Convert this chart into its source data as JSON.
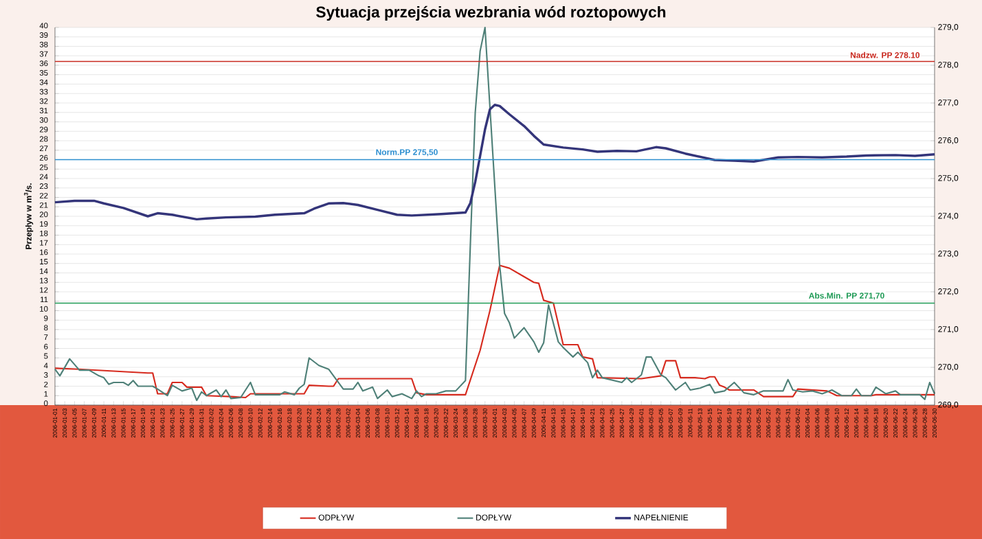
{
  "chart_data": {
    "type": "line",
    "title": "Sytuacja przejścia wezbrania wód roztopowych",
    "ylabel": "Przepływ w m$^{3}$/s.",
    "xlim": [
      "2006-01-01",
      "2006-06-30"
    ],
    "xticks": [
      "2006-01-01",
      "2006-01-03",
      "2006-01-05",
      "2006-01-07",
      "2006-01-09",
      "2006-01-11",
      "2006-01-13",
      "2006-01-15",
      "2006-01-17",
      "2006-01-19",
      "2006-01-21",
      "2006-01-23",
      "2006-01-25",
      "2006-01-27",
      "2006-01-29",
      "2006-01-31",
      "2006-02-02",
      "2006-02-04",
      "2006-02-06",
      "2006-02-08",
      "2006-02-10",
      "2006-02-12",
      "2006-02-14",
      "2006-02-16",
      "2006-02-18",
      "2006-02-20",
      "2006-02-22",
      "2006-02-24",
      "2006-02-26",
      "2006-02-28",
      "2006-03-02",
      "2006-03-04",
      "2006-03-06",
      "2006-03-08",
      "2006-03-10",
      "2006-03-12",
      "2006-03-14",
      "2006-03-16",
      "2006-03-18",
      "2006-03-20",
      "2006-03-22",
      "2006-03-24",
      "2006-03-26",
      "2006-03-28",
      "2006-03-30",
      "2006-04-01",
      "2006-04-03",
      "2006-04-05",
      "2006-04-07",
      "2006-04-09",
      "2006-04-11",
      "2006-04-13",
      "2006-04-15",
      "2006-04-17",
      "2006-04-19",
      "2006-04-21",
      "2006-04-23",
      "2006-04-25",
      "2006-04-27",
      "2006-04-29",
      "2006-05-01",
      "2006-05-03",
      "2006-05-05",
      "2006-05-07",
      "2006-05-09",
      "2006-05-11",
      "2006-05-13",
      "2006-05-15",
      "2006-05-17",
      "2006-05-19",
      "2006-05-21",
      "2006-05-23",
      "2006-05-25",
      "2006-05-27",
      "2006-05-29",
      "2006-05-31",
      "2006-06-02",
      "2006-06-04",
      "2006-06-06",
      "2006-06-08",
      "2006-06-10",
      "2006-06-12",
      "2006-06-14",
      "2006-06-16",
      "2006-06-18",
      "2006-06-20",
      "2006-06-22",
      "2006-06-24",
      "2006-06-26",
      "2006-06-28",
      "2006-06-30"
    ],
    "ylim": [
      0,
      40
    ],
    "yticks": [
      0,
      1,
      2,
      3,
      4,
      5,
      6,
      7,
      8,
      9,
      10,
      11,
      12,
      13,
      14,
      15,
      16,
      17,
      18,
      19,
      20,
      21,
      22,
      23,
      24,
      25,
      26,
      27,
      28,
      29,
      30,
      31,
      32,
      33,
      34,
      35,
      36,
      37,
      38,
      39,
      40
    ],
    "y2lim": [
      269,
      279
    ],
    "y2ticks": [
      {
        "value": 269,
        "label": "269,0"
      },
      {
        "value": 270,
        "label": "270,0"
      },
      {
        "value": 271,
        "label": "271,0"
      },
      {
        "value": 272,
        "label": "272,0"
      },
      {
        "value": 273,
        "label": "273,0"
      },
      {
        "value": 274,
        "label": "274,0"
      },
      {
        "value": 275,
        "label": "275,0"
      },
      {
        "value": 276,
        "label": "276,0"
      },
      {
        "value": 277,
        "label": "277,0"
      },
      {
        "value": 278,
        "label": "278,0"
      },
      {
        "value": 279,
        "label": "279,0"
      }
    ],
    "grid": "y",
    "legend": "bottom",
    "ref_lines": [
      {
        "axis": "y2",
        "value": 278.1,
        "label": "Nadzw. PP 278.10",
        "color": "#c8281e"
      },
      {
        "axis": "y2",
        "value": 275.5,
        "label": "Norm.PP 275,50",
        "color": "#2e8fd0"
      },
      {
        "axis": "y2",
        "value": 271.7,
        "label": "Abs.Min.  PP 271,70",
        "color": "#1e9a55"
      }
    ],
    "series": [
      {
        "name": "ODPŁYW",
        "color": "#d62a1e",
        "x": [
          "2006-01-01",
          "2006-01-06",
          "2006-01-13",
          "2006-01-20",
          "2006-01-21",
          "2006-01-22",
          "2006-01-24",
          "2006-01-25",
          "2006-01-27",
          "2006-01-28",
          "2006-01-31",
          "2006-02-01",
          "2006-02-06",
          "2006-02-09",
          "2006-02-10",
          "2006-02-21",
          "2006-02-22",
          "2006-02-26",
          "2006-02-27",
          "2006-02-28",
          "2006-03-15",
          "2006-03-16",
          "2006-03-18",
          "2006-03-26",
          "2006-03-29",
          "2006-03-31",
          "2006-04-02",
          "2006-04-04",
          "2006-04-07",
          "2006-04-09",
          "2006-04-10",
          "2006-04-11",
          "2006-04-13",
          "2006-04-15",
          "2006-04-18",
          "2006-04-19",
          "2006-04-21",
          "2006-04-22",
          "2006-05-01",
          "2006-05-05",
          "2006-05-06",
          "2006-05-08",
          "2006-05-09",
          "2006-05-12",
          "2006-05-14",
          "2006-05-15",
          "2006-05-16",
          "2006-05-17",
          "2006-05-18",
          "2006-05-19",
          "2006-05-24",
          "2006-05-26",
          "2006-06-01",
          "2006-06-02",
          "2006-06-08",
          "2006-06-10",
          "2006-06-17",
          "2006-06-18",
          "2006-06-30"
        ],
        "values": [
          3.9,
          3.8,
          3.6,
          3.4,
          3.4,
          1.2,
          1.2,
          2.4,
          2.4,
          1.9,
          1.9,
          1.0,
          0.9,
          0.8,
          1.2,
          1.2,
          2.1,
          2.0,
          2.0,
          2.8,
          2.8,
          1.3,
          1.1,
          1.1,
          5.8,
          10.0,
          14.8,
          14.5,
          13.6,
          13.0,
          12.9,
          11.1,
          10.8,
          6.4,
          6.4,
          5.1,
          4.9,
          2.9,
          2.8,
          3.1,
          4.7,
          4.7,
          2.9,
          2.9,
          2.8,
          3.0,
          3.0,
          2.1,
          1.9,
          1.6,
          1.6,
          0.9,
          0.9,
          1.7,
          1.5,
          1.0,
          1.0,
          1.1,
          1.1
        ]
      },
      {
        "name": "DOPŁYW",
        "color": "#4f8078",
        "x": [
          "2006-01-01",
          "2006-01-02",
          "2006-01-04",
          "2006-01-06",
          "2006-01-08",
          "2006-01-10",
          "2006-01-11",
          "2006-01-12",
          "2006-01-13",
          "2006-01-15",
          "2006-01-16",
          "2006-01-17",
          "2006-01-18",
          "2006-01-21",
          "2006-01-22",
          "2006-01-24",
          "2006-01-25",
          "2006-01-27",
          "2006-01-29",
          "2006-01-30",
          "2006-01-31",
          "2006-02-01",
          "2006-02-03",
          "2006-02-04",
          "2006-02-05",
          "2006-02-06",
          "2006-02-08",
          "2006-02-10",
          "2006-02-11",
          "2006-02-16",
          "2006-02-17",
          "2006-02-19",
          "2006-02-20",
          "2006-02-21",
          "2006-02-22",
          "2006-02-24",
          "2006-02-26",
          "2006-02-27",
          "2006-03-01",
          "2006-03-03",
          "2006-03-04",
          "2006-03-05",
          "2006-03-07",
          "2006-03-08",
          "2006-03-10",
          "2006-03-11",
          "2006-03-13",
          "2006-03-15",
          "2006-03-16",
          "2006-03-17",
          "2006-03-18",
          "2006-03-20",
          "2006-03-22",
          "2006-03-24",
          "2006-03-26",
          "2006-03-27",
          "2006-03-28",
          "2006-03-29",
          "2006-03-30",
          "2006-03-31",
          "2006-04-01",
          "2006-04-02",
          "2006-04-03",
          "2006-04-04",
          "2006-04-05",
          "2006-04-07",
          "2006-04-09",
          "2006-04-10",
          "2006-04-11",
          "2006-04-12",
          "2006-04-14",
          "2006-04-15",
          "2006-04-17",
          "2006-04-18",
          "2006-04-20",
          "2006-04-21",
          "2006-04-22",
          "2006-04-23",
          "2006-04-27",
          "2006-04-28",
          "2006-04-29",
          "2006-05-01",
          "2006-05-02",
          "2006-05-03",
          "2006-05-05",
          "2006-05-06",
          "2006-05-08",
          "2006-05-10",
          "2006-05-11",
          "2006-05-13",
          "2006-05-15",
          "2006-05-16",
          "2006-05-18",
          "2006-05-20",
          "2006-05-22",
          "2006-05-24",
          "2006-05-26",
          "2006-05-30",
          "2006-05-31",
          "2006-06-01",
          "2006-06-03",
          "2006-06-05",
          "2006-06-07",
          "2006-06-09",
          "2006-06-11",
          "2006-06-13",
          "2006-06-14",
          "2006-06-15",
          "2006-06-17",
          "2006-06-18",
          "2006-06-20",
          "2006-06-22",
          "2006-06-23",
          "2006-06-27",
          "2006-06-28",
          "2006-06-29",
          "2006-06-30"
        ],
        "values": [
          3.8,
          3.1,
          4.9,
          3.7,
          3.7,
          3.1,
          2.9,
          2.2,
          2.4,
          2.4,
          2.1,
          2.6,
          2.0,
          2.0,
          1.7,
          1.0,
          2.1,
          1.5,
          1.8,
          0.5,
          1.4,
          1.0,
          1.6,
          0.9,
          1.6,
          0.7,
          0.8,
          2.4,
          1.1,
          1.1,
          1.4,
          1.1,
          1.8,
          2.2,
          5.0,
          4.2,
          3.8,
          3.1,
          1.7,
          1.7,
          2.4,
          1.5,
          1.9,
          0.7,
          1.6,
          0.9,
          1.2,
          0.7,
          1.5,
          0.9,
          1.2,
          1.2,
          1.5,
          1.5,
          2.6,
          17.0,
          31.0,
          37.5,
          40.0,
          31.6,
          23.2,
          14.8,
          9.7,
          8.7,
          7.1,
          8.2,
          6.7,
          5.6,
          6.6,
          10.6,
          6.7,
          6.1,
          5.1,
          5.6,
          4.5,
          2.9,
          3.7,
          2.9,
          2.4,
          2.9,
          2.4,
          3.2,
          5.1,
          5.1,
          3.2,
          2.9,
          1.6,
          2.4,
          1.6,
          1.8,
          2.2,
          1.3,
          1.5,
          2.4,
          1.3,
          1.1,
          1.5,
          1.5,
          2.7,
          1.6,
          1.4,
          1.5,
          1.2,
          1.6,
          1.0,
          1.0,
          1.7,
          1.0,
          1.0,
          1.9,
          1.2,
          1.5,
          1.1,
          1.1,
          0.6,
          2.4,
          1.2
        ]
      },
      {
        "name": "NAPEŁNIENIE",
        "color": "#34357a",
        "axis": "y2",
        "x": [
          "2006-01-01",
          "2006-01-05",
          "2006-01-09",
          "2006-01-11",
          "2006-01-15",
          "2006-01-20",
          "2006-01-22",
          "2006-01-25",
          "2006-01-30",
          "2006-02-01",
          "2006-02-05",
          "2006-02-11",
          "2006-02-15",
          "2006-02-21",
          "2006-02-23",
          "2006-02-26",
          "2006-03-01",
          "2006-03-04",
          "2006-03-08",
          "2006-03-12",
          "2006-03-15",
          "2006-03-21",
          "2006-03-26",
          "2006-03-27",
          "2006-03-28",
          "2006-03-29",
          "2006-03-30",
          "2006-03-31",
          "2006-04-01",
          "2006-04-02",
          "2006-04-04",
          "2006-04-07",
          "2006-04-09",
          "2006-04-11",
          "2006-04-15",
          "2006-04-19",
          "2006-04-22",
          "2006-04-26",
          "2006-04-30",
          "2006-05-04",
          "2006-05-06",
          "2006-05-10",
          "2006-05-16",
          "2006-05-20",
          "2006-05-24",
          "2006-05-29",
          "2006-06-02",
          "2006-06-07",
          "2006-06-12",
          "2006-06-16",
          "2006-06-22",
          "2006-06-26",
          "2006-06-30"
        ],
        "values": [
          274.37,
          274.41,
          274.41,
          274.34,
          274.22,
          274.0,
          274.08,
          274.04,
          273.92,
          273.94,
          273.97,
          273.99,
          274.04,
          274.08,
          274.2,
          274.34,
          274.35,
          274.3,
          274.17,
          274.04,
          274.02,
          274.06,
          274.1,
          274.35,
          274.91,
          275.6,
          276.3,
          276.83,
          276.95,
          276.92,
          276.7,
          276.39,
          276.13,
          275.9,
          275.82,
          275.77,
          275.71,
          275.73,
          275.72,
          275.83,
          275.8,
          275.66,
          275.49,
          275.47,
          275.45,
          275.56,
          275.57,
          275.56,
          275.58,
          275.61,
          275.62,
          275.6,
          275.64
        ]
      }
    ]
  }
}
